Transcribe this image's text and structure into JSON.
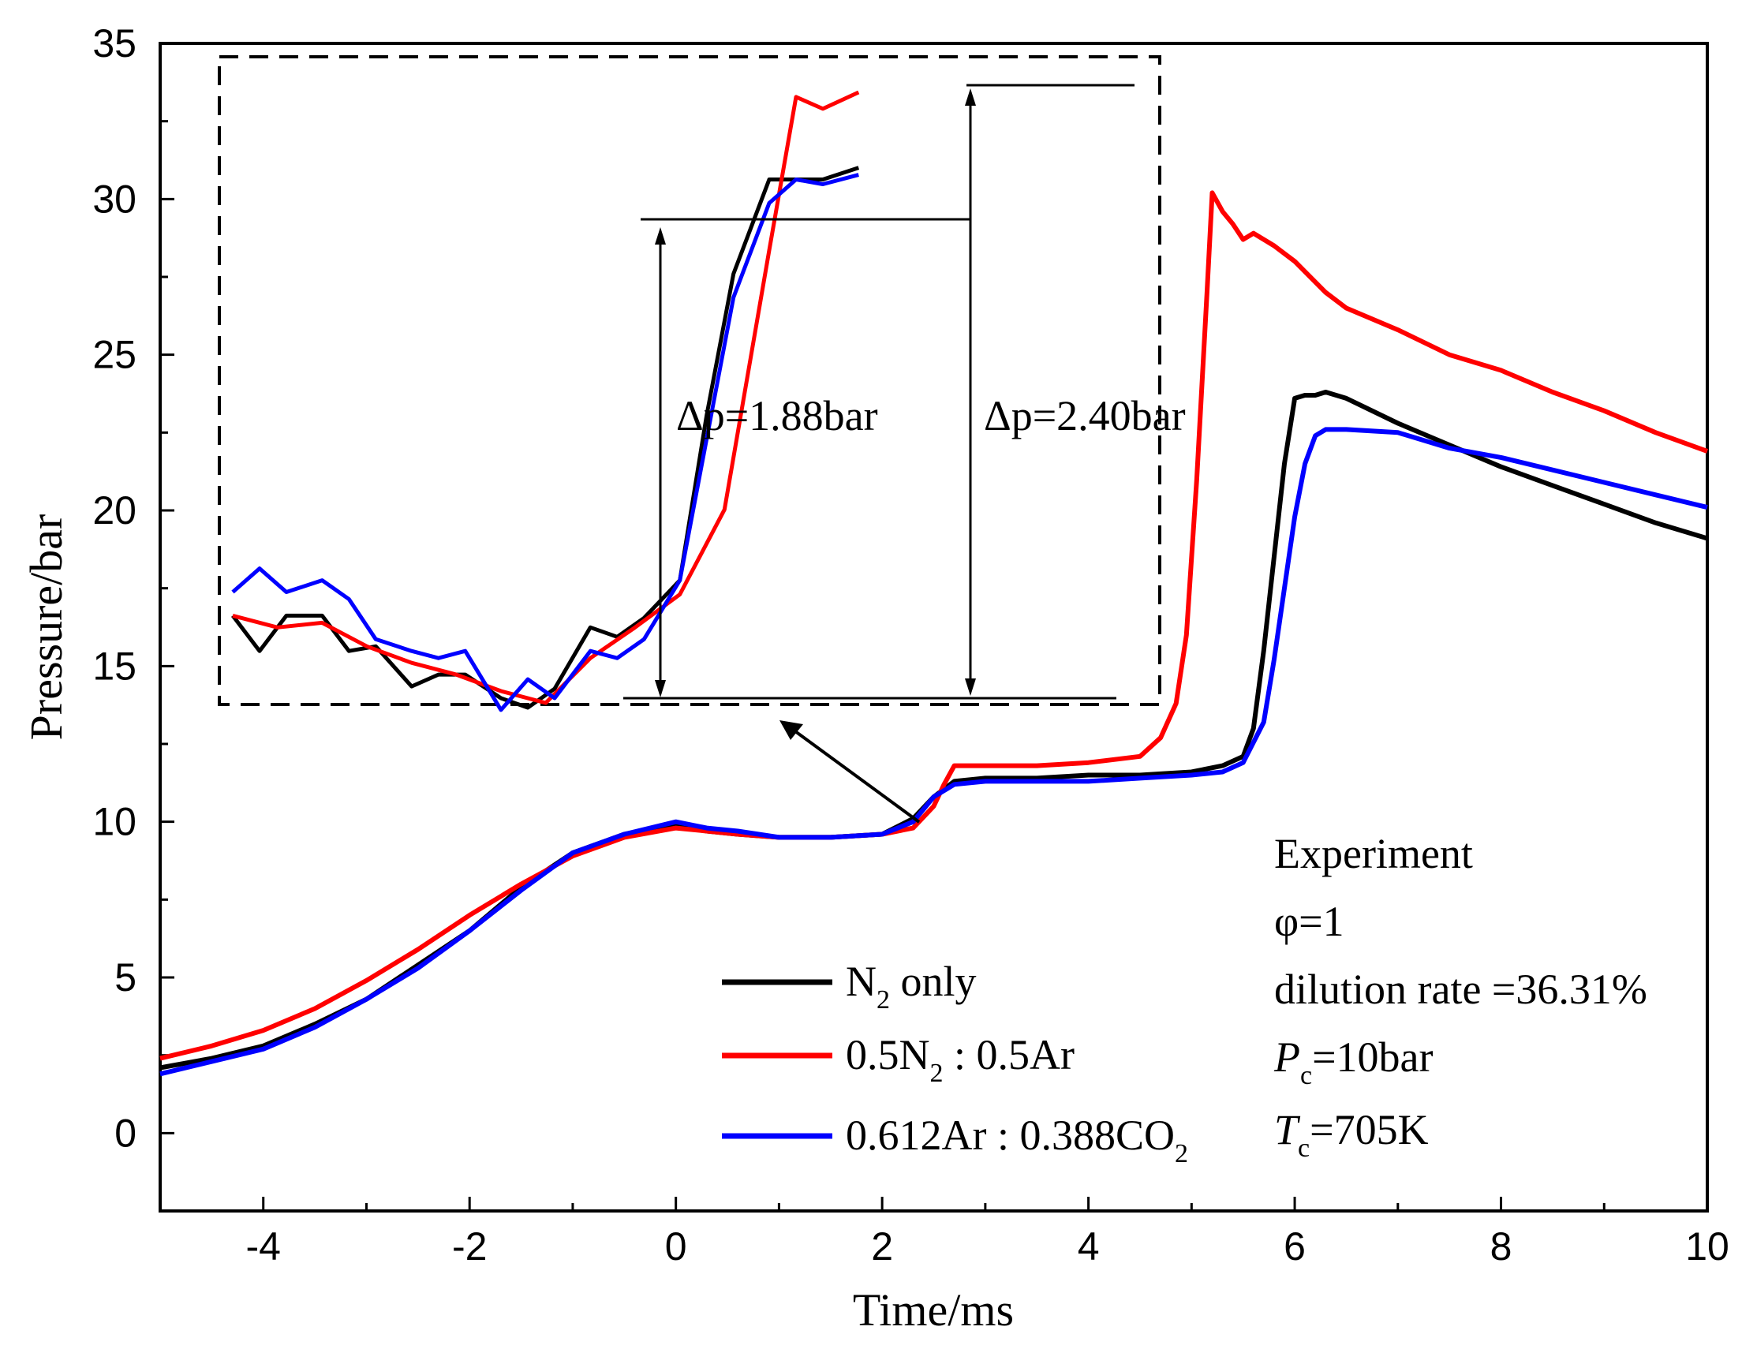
{
  "chart_data": {
    "type": "line",
    "xlabel": "Time/ms",
    "ylabel": "Pressure/bar",
    "xlim": [
      -5,
      10
    ],
    "ylim": [
      -2.5,
      35
    ],
    "xticks": [
      "-4",
      "-2",
      "0",
      "2",
      "4",
      "6",
      "8",
      "10"
    ],
    "yticks": [
      "0",
      "5",
      "10",
      "15",
      "20",
      "25",
      "30",
      "35"
    ],
    "xtick_values": [
      -4,
      -2,
      0,
      2,
      4,
      6,
      8,
      10
    ],
    "ytick_values": [
      0,
      5,
      10,
      15,
      20,
      25,
      30,
      35
    ],
    "series": [
      {
        "name": "N2 only",
        "label_main": "N",
        "label_sub": "2",
        "label_tail": " only",
        "color": "#000000",
        "x": [
          -5,
          -4.5,
          -4,
          -3.5,
          -3,
          -2.5,
          -2,
          -1.5,
          -1,
          -0.5,
          0,
          0.3,
          0.6,
          1,
          1.5,
          2,
          2.3,
          2.5,
          2.7,
          3,
          3.5,
          4,
          4.5,
          5,
          5.3,
          5.5,
          5.6,
          5.7,
          5.8,
          5.9,
          6.0,
          6.1,
          6.2,
          6.3,
          6.5,
          7,
          7.5,
          8,
          8.5,
          9,
          9.5,
          10
        ],
        "y": [
          2.1,
          2.4,
          2.8,
          3.5,
          4.3,
          5.4,
          6.5,
          7.9,
          9.0,
          9.6,
          9.9,
          9.7,
          9.6,
          9.5,
          9.5,
          9.6,
          10.1,
          10.8,
          11.3,
          11.4,
          11.4,
          11.5,
          11.5,
          11.6,
          11.8,
          12.1,
          13.0,
          15.5,
          18.5,
          21.5,
          23.6,
          23.7,
          23.7,
          23.8,
          23.6,
          22.8,
          22.1,
          21.4,
          20.8,
          20.2,
          19.6,
          19.1
        ]
      },
      {
        "name": "0.5N2 : 0.5Ar",
        "label_main": "0.5N",
        "label_sub": "2",
        "label_tail": " : 0.5Ar",
        "color": "#ff0000",
        "x": [
          -5,
          -4.5,
          -4,
          -3.5,
          -3,
          -2.5,
          -2,
          -1.5,
          -1,
          -0.5,
          0,
          0.3,
          0.6,
          1,
          1.5,
          2,
          2.3,
          2.5,
          2.6,
          2.7,
          3,
          3.5,
          4,
          4.5,
          4.7,
          4.85,
          4.95,
          5.05,
          5.15,
          5.2,
          5.3,
          5.4,
          5.5,
          5.6,
          5.7,
          5.8,
          6,
          6.3,
          6.5,
          7,
          7.5,
          8,
          8.5,
          9,
          9.5,
          10
        ],
        "y": [
          2.4,
          2.8,
          3.3,
          4.0,
          4.9,
          5.9,
          7.0,
          8.0,
          8.9,
          9.5,
          9.8,
          9.7,
          9.6,
          9.5,
          9.5,
          9.6,
          9.8,
          10.5,
          11.2,
          11.8,
          11.8,
          11.8,
          11.9,
          12.1,
          12.7,
          13.8,
          16.0,
          21.0,
          27.0,
          30.2,
          29.6,
          29.2,
          28.7,
          28.9,
          28.7,
          28.5,
          28.0,
          27.0,
          26.5,
          25.8,
          25.0,
          24.5,
          23.8,
          23.2,
          22.5,
          21.9
        ]
      },
      {
        "name": "0.612Ar : 0.388CO2",
        "label_main": "0.612Ar : 0.388CO",
        "label_sub": "2",
        "label_tail": "",
        "color": "#0000ff",
        "x": [
          -5,
          -4.5,
          -4,
          -3.5,
          -3,
          -2.5,
          -2,
          -1.5,
          -1,
          -0.5,
          0,
          0.3,
          0.6,
          1,
          1.5,
          2,
          2.3,
          2.5,
          2.7,
          3,
          3.5,
          4,
          4.5,
          5,
          5.3,
          5.5,
          5.7,
          5.8,
          5.9,
          6.0,
          6.1,
          6.2,
          6.3,
          6.5,
          7,
          7.5,
          8,
          8.5,
          9,
          9.5,
          10
        ],
        "y": [
          1.9,
          2.3,
          2.7,
          3.4,
          4.3,
          5.3,
          6.5,
          7.8,
          9.0,
          9.6,
          10.0,
          9.8,
          9.7,
          9.5,
          9.5,
          9.6,
          10.0,
          10.8,
          11.2,
          11.3,
          11.3,
          11.3,
          11.4,
          11.5,
          11.6,
          11.9,
          13.2,
          15.2,
          17.5,
          19.8,
          21.5,
          22.4,
          22.6,
          22.6,
          22.5,
          22.0,
          21.7,
          21.3,
          20.9,
          20.5,
          20.1
        ]
      }
    ],
    "annotations": {
      "dp1": "Δp=1.88bar",
      "dp2": "Δp=2.40bar"
    },
    "info": {
      "line1": "Experiment",
      "line2": "φ=1",
      "line3": "dilution rate =36.31%",
      "pc_main": "P",
      "pc_sub": "c",
      "pc_tail": "=10bar",
      "tc_main": "T",
      "tc_sub": "c",
      "tc_tail": "=705K"
    },
    "inset": {
      "x_range": [
        2.0,
        2.9
      ],
      "y_range": [
        9.4,
        12.0
      ],
      "series": [
        {
          "name": "N2 only",
          "color": "#000000",
          "x": [
            2.0,
            2.03,
            2.06,
            2.1,
            2.13,
            2.16,
            2.2,
            2.23,
            2.26,
            2.3,
            2.33,
            2.36,
            2.4,
            2.43,
            2.46,
            2.5,
            2.53,
            2.56,
            2.6,
            2.63,
            2.66,
            2.7
          ],
          "y": [
            9.75,
            9.6,
            9.75,
            9.75,
            9.6,
            9.62,
            9.45,
            9.5,
            9.5,
            9.4,
            9.36,
            9.44,
            9.7,
            9.66,
            9.74,
            9.9,
            10.6,
            11.2,
            11.6,
            11.6,
            11.6,
            11.65
          ]
        },
        {
          "name": "0.5N2 : 0.5Ar",
          "color": "#ff0000",
          "x": [
            2.0,
            2.05,
            2.1,
            2.15,
            2.2,
            2.25,
            2.3,
            2.35,
            2.4,
            2.45,
            2.5,
            2.55,
            2.6,
            2.63,
            2.66,
            2.7
          ],
          "y": [
            9.75,
            9.7,
            9.72,
            9.62,
            9.55,
            9.5,
            9.43,
            9.38,
            9.57,
            9.7,
            9.84,
            10.2,
            11.3,
            11.95,
            11.9,
            11.97
          ]
        },
        {
          "name": "0.612Ar : 0.388CO2",
          "color": "#0000ff",
          "x": [
            2.0,
            2.03,
            2.06,
            2.1,
            2.13,
            2.16,
            2.2,
            2.23,
            2.26,
            2.3,
            2.33,
            2.36,
            2.4,
            2.43,
            2.46,
            2.5,
            2.53,
            2.56,
            2.6,
            2.63,
            2.66,
            2.7
          ],
          "y": [
            9.85,
            9.95,
            9.85,
            9.9,
            9.82,
            9.65,
            9.6,
            9.57,
            9.6,
            9.35,
            9.48,
            9.4,
            9.6,
            9.57,
            9.65,
            9.9,
            10.5,
            11.1,
            11.5,
            11.6,
            11.58,
            11.62
          ]
        }
      ]
    }
  }
}
